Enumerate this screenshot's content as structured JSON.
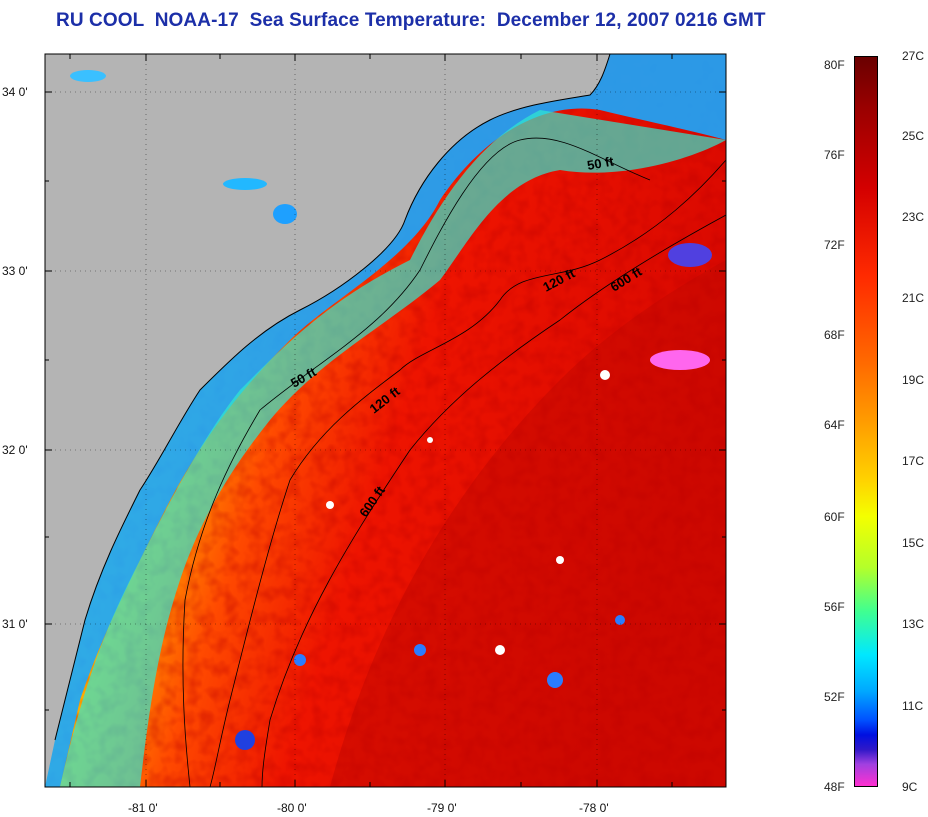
{
  "title": "RU COOL  NOAA-17  Sea Surface Temperature:  December 12, 2007 0216 GMT",
  "latitude_labels": [
    "34 0'",
    "33 0'",
    "32 0'",
    "31 0'"
  ],
  "longitude_labels": [
    "-81 0'",
    "-80 0'",
    "-79 0'",
    "-78 0'"
  ],
  "depth_contours": [
    {
      "label": "50 ft"
    },
    {
      "label": "120 ft"
    },
    {
      "label": "600 ft"
    },
    {
      "label": "50 ft"
    },
    {
      "label": "120 ft"
    },
    {
      "label": "600 ft"
    }
  ],
  "colorbar": {
    "fahrenheit_labels": [
      "80F",
      "76F",
      "72F",
      "68F",
      "64F",
      "60F",
      "56F",
      "52F",
      "48F"
    ],
    "celsius_labels": [
      "27C",
      "25C",
      "23C",
      "21C",
      "19C",
      "17C",
      "15C",
      "13C",
      "11C",
      "9C"
    ]
  },
  "colors": {
    "title": "#1c2fa8",
    "land": "#b4b4b4",
    "warm": "#e81a00",
    "cool": "#2a7cff",
    "cloud": "#ffffff"
  }
}
